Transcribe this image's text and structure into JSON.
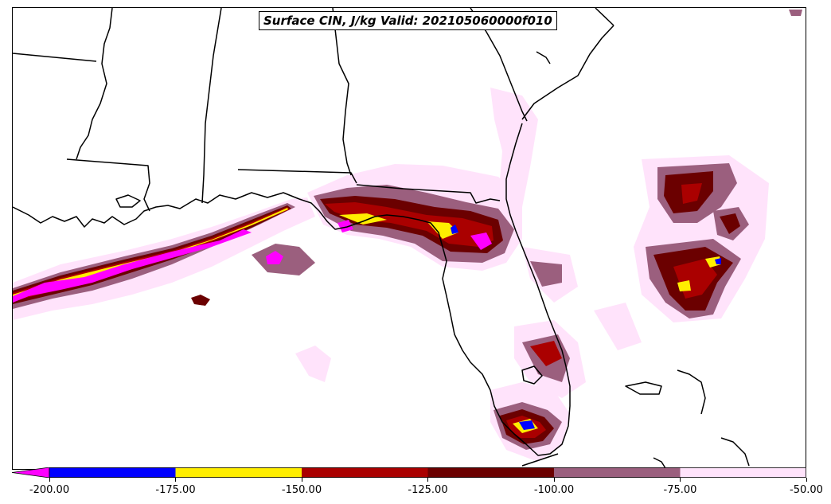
{
  "title": "Surface CIN, J/kg Valid: 202105060000f010",
  "colorbar": {
    "ticks": [
      "-200.00",
      "-175.00",
      "-150.00",
      "-125.00",
      "-100.00",
      "-75.00",
      "-50.00"
    ],
    "segments": [
      {
        "from": -225,
        "to": -200,
        "color": "#ff00ff"
      },
      {
        "from": -200,
        "to": -175,
        "color": "#0000ff"
      },
      {
        "from": -175,
        "to": -150,
        "color": "#ffee00"
      },
      {
        "from": -150,
        "to": -125,
        "color": "#aa0000"
      },
      {
        "from": -125,
        "to": -100,
        "color": "#6b0000"
      },
      {
        "from": -100,
        "to": -75,
        "color": "#9b5f7e"
      },
      {
        "from": -75,
        "to": -50,
        "color": "#ffe3fb"
      }
    ]
  },
  "colors": {
    "lightest": "#ffe3fb",
    "mauve": "#9b5f7e",
    "darkred": "#6b0000",
    "red": "#aa0000",
    "yellow": "#ffee00",
    "blue": "#0000ff",
    "magenta": "#ff00ff"
  }
}
